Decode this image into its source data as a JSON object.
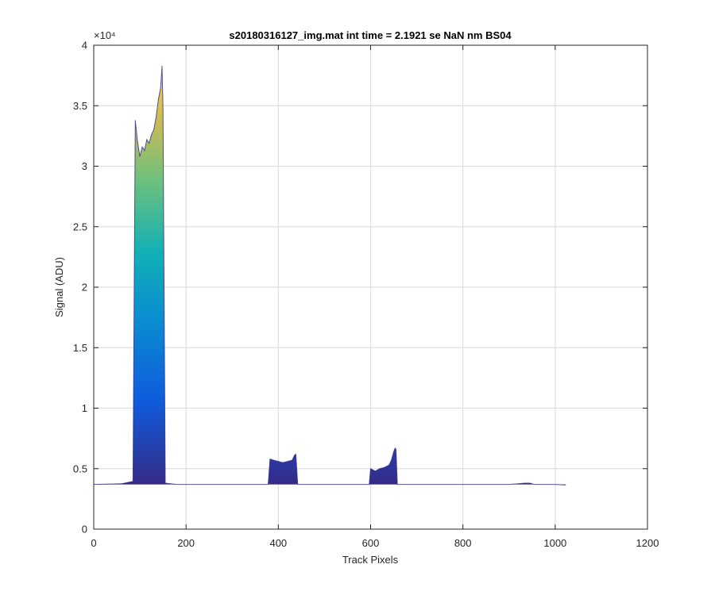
{
  "chart_data": {
    "type": "area",
    "title": "s20180316127_img.mat int time = 2.1921 se  NaN nm BS04",
    "xlabel": "Track Pixels",
    "ylabel": "Signal (ADU)",
    "xlim": [
      0,
      1200
    ],
    "ylim": [
      0,
      40000
    ],
    "y_exponent_label": "×10⁴",
    "y_scale_factor": 10000,
    "grid": true,
    "legend": "none",
    "colormap": "parula",
    "x_ticks": [
      0,
      200,
      400,
      600,
      800,
      1000,
      1200
    ],
    "x_tick_labels": [
      "0",
      "200",
      "400",
      "600",
      "800",
      "1000",
      "1200"
    ],
    "y_ticks": [
      0,
      5000,
      10000,
      15000,
      20000,
      25000,
      30000,
      35000,
      40000
    ],
    "y_tick_labels": [
      "0",
      "0.5",
      "1",
      "1.5",
      "2",
      "2.5",
      "3",
      "3.5",
      "4"
    ],
    "baseline": 3700,
    "profile": {
      "x": [
        0,
        60,
        85,
        90,
        95,
        100,
        105,
        110,
        115,
        120,
        125,
        130,
        135,
        140,
        145,
        148,
        150,
        155,
        180,
        378,
        382,
        390,
        400,
        410,
        420,
        430,
        435,
        438,
        442,
        500,
        597,
        600,
        610,
        620,
        630,
        640,
        645,
        650,
        653,
        655,
        658,
        700,
        800,
        900,
        935,
        945,
        955,
        1000,
        1023
      ],
      "y": [
        3700,
        3750,
        3950,
        33800,
        32000,
        30800,
        31600,
        31300,
        32200,
        31900,
        32600,
        33000,
        34000,
        35500,
        36500,
        38300,
        35000,
        3800,
        3700,
        3700,
        5800,
        5700,
        5600,
        5500,
        5600,
        5700,
        6100,
        6200,
        3700,
        3700,
        3700,
        5000,
        4800,
        5000,
        5100,
        5300,
        5700,
        6400,
        6700,
        6600,
        3700,
        3700,
        3700,
        3700,
        3800,
        3800,
        3700,
        3700,
        3650
      ]
    }
  }
}
